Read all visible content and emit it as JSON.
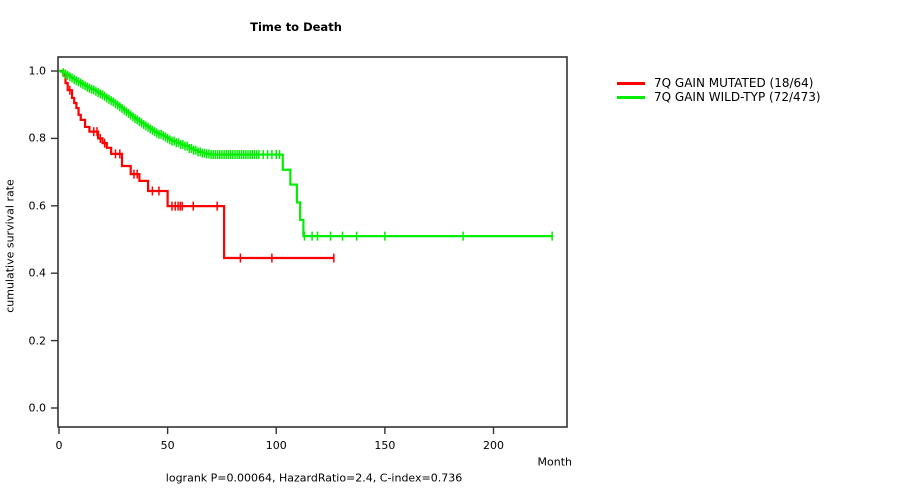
{
  "header": {
    "title": "Time to Death"
  },
  "axes": {
    "x_label": "Month",
    "y_label": "cumulative survival rate"
  },
  "footer": {
    "annotation": "logrank P=0.00064, HazardRatio=2.4, C-index=0.736"
  },
  "chart_data": {
    "type": "line",
    "subtype": "kaplan-meier-step-curves",
    "title": "Time to Death",
    "xlabel": "Month",
    "ylabel": "cumulative survival rate",
    "xlim": [
      0,
      234
    ],
    "ylim": [
      0.0,
      1.0
    ],
    "x_ticks": [
      0,
      50,
      100,
      150,
      200
    ],
    "y_ticks": [
      0.0,
      0.2,
      0.4,
      0.6,
      0.8,
      1.0
    ],
    "y_tick_labels": [
      "0.0",
      "0.2",
      "0.4",
      "0.6",
      "0.8",
      "1.0"
    ],
    "grid": false,
    "legend_position": "right-outside",
    "annotation": "logrank P=0.00064, HazardRatio=2.4, C-index=0.736",
    "axis_color": "#333333",
    "series": [
      {
        "name": "7Q GAIN MUTATED (18/64)",
        "color": "#ff0000",
        "end_t": 126.5,
        "steps": [
          [
            0,
            1.0
          ],
          [
            2,
            0.988
          ],
          [
            3,
            0.964
          ],
          [
            4,
            0.943
          ],
          [
            6,
            0.92
          ],
          [
            7,
            0.905
          ],
          [
            8,
            0.89
          ],
          [
            9,
            0.87
          ],
          [
            10,
            0.855
          ],
          [
            12,
            0.834
          ],
          [
            14,
            0.82
          ],
          [
            18,
            0.8
          ],
          [
            20,
            0.786
          ],
          [
            22,
            0.772
          ],
          [
            24,
            0.754
          ],
          [
            29,
            0.718
          ],
          [
            33,
            0.694
          ],
          [
            37,
            0.674
          ],
          [
            41,
            0.644
          ],
          [
            50,
            0.599
          ],
          [
            76,
            0.445
          ]
        ],
        "censor_times": [
          5,
          16,
          17.5,
          19,
          21,
          26,
          28,
          34.5,
          36,
          43,
          46,
          52,
          53.5,
          54.8,
          55.8,
          56.7,
          61.8,
          72.8,
          83.5,
          98,
          126.5
        ]
      },
      {
        "name": "7Q GAIN WILD-TYP (72/473)",
        "color": "#00ee00",
        "end_t": 227,
        "steps": [
          [
            0,
            1.0
          ],
          [
            1,
            0.998
          ],
          [
            2,
            0.995
          ],
          [
            3,
            0.991
          ],
          [
            4,
            0.987
          ],
          [
            5,
            0.983
          ],
          [
            6,
            0.979
          ],
          [
            7,
            0.975
          ],
          [
            8,
            0.971
          ],
          [
            9,
            0.968
          ],
          [
            10,
            0.964
          ],
          [
            11,
            0.96
          ],
          [
            12,
            0.956
          ],
          [
            13,
            0.952
          ],
          [
            14,
            0.949
          ],
          [
            15,
            0.946
          ],
          [
            16,
            0.944
          ],
          [
            17,
            0.94
          ],
          [
            18,
            0.936
          ],
          [
            19,
            0.932
          ],
          [
            20,
            0.929
          ],
          [
            21,
            0.925
          ],
          [
            22,
            0.92
          ],
          [
            23,
            0.916
          ],
          [
            24,
            0.912
          ],
          [
            25,
            0.908
          ],
          [
            26,
            0.903
          ],
          [
            27,
            0.899
          ],
          [
            28,
            0.894
          ],
          [
            29,
            0.889
          ],
          [
            30,
            0.884
          ],
          [
            31,
            0.879
          ],
          [
            32,
            0.874
          ],
          [
            33,
            0.869
          ],
          [
            34,
            0.864
          ],
          [
            35,
            0.859
          ],
          [
            36,
            0.855
          ],
          [
            37,
            0.85
          ],
          [
            38,
            0.846
          ],
          [
            39,
            0.841
          ],
          [
            40,
            0.837
          ],
          [
            41,
            0.833
          ],
          [
            42,
            0.828
          ],
          [
            43,
            0.824
          ],
          [
            44,
            0.82
          ],
          [
            45,
            0.816
          ],
          [
            46,
            0.812
          ],
          [
            48,
            0.808
          ],
          [
            49,
            0.804
          ],
          [
            50,
            0.8
          ],
          [
            51,
            0.796
          ],
          [
            52,
            0.792
          ],
          [
            54,
            0.787
          ],
          [
            56,
            0.782
          ],
          [
            58,
            0.777
          ],
          [
            60,
            0.77
          ],
          [
            62,
            0.765
          ],
          [
            64,
            0.76
          ],
          [
            66,
            0.756
          ],
          [
            68,
            0.754
          ],
          [
            70,
            0.752
          ],
          [
            103,
            0.707
          ],
          [
            106.5,
            0.663
          ],
          [
            109.5,
            0.61
          ],
          [
            111,
            0.558
          ],
          [
            112.5,
            0.51
          ]
        ],
        "censor_times": [
          2,
          3,
          4,
          5,
          6,
          7,
          8,
          9,
          10,
          11,
          12,
          13,
          14,
          15,
          16,
          17,
          18,
          19,
          20,
          21,
          22,
          23,
          24,
          25,
          26,
          27,
          28,
          29,
          30,
          31,
          32,
          33,
          34,
          35,
          36,
          37,
          38,
          39,
          40,
          41,
          42,
          43,
          44,
          45,
          46,
          47,
          48,
          49,
          50,
          51,
          52,
          53,
          54,
          55,
          56,
          57,
          58,
          59,
          60,
          61,
          62,
          63,
          64,
          65,
          66,
          67,
          68,
          69,
          70,
          71,
          72,
          73,
          74,
          75,
          76,
          77,
          78,
          79,
          80,
          81,
          82,
          83,
          84,
          85,
          86,
          87,
          88,
          89,
          90,
          91,
          92,
          94,
          96,
          98,
          100,
          101.5,
          113,
          116.5,
          119,
          125,
          130.5,
          137,
          150,
          186,
          227
        ]
      }
    ]
  }
}
